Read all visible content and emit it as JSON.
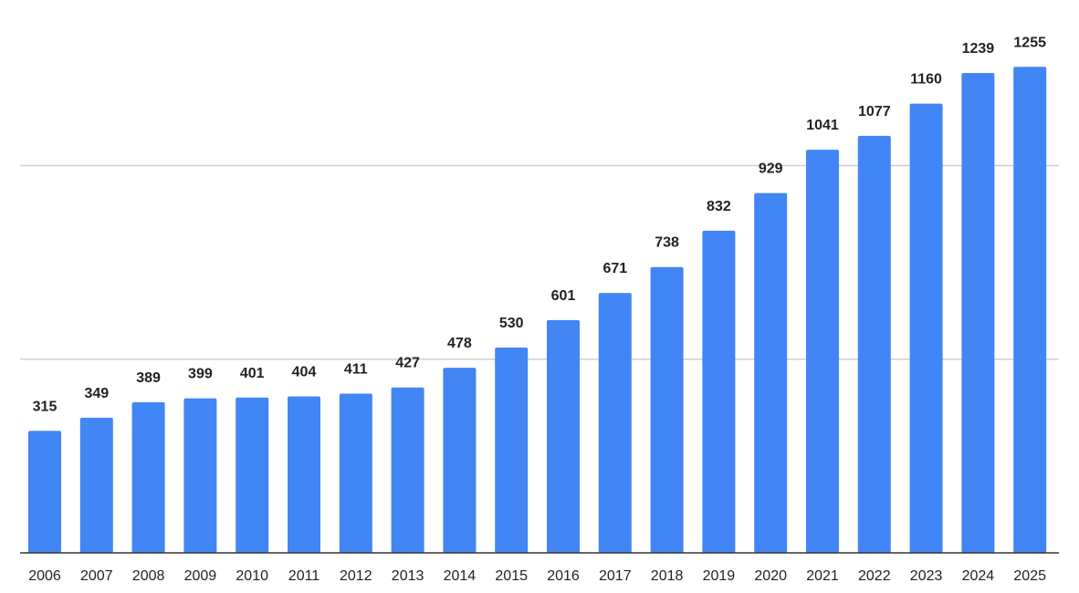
{
  "chart_data": {
    "type": "bar",
    "categories": [
      "2006",
      "2007",
      "2008",
      "2009",
      "2010",
      "2011",
      "2012",
      "2013",
      "2014",
      "2015",
      "2016",
      "2017",
      "2018",
      "2019",
      "2020",
      "2021",
      "2022",
      "2023",
      "2024",
      "2025"
    ],
    "values": [
      315,
      349,
      389,
      399,
      401,
      404,
      411,
      427,
      478,
      530,
      601,
      671,
      738,
      832,
      929,
      1041,
      1077,
      1160,
      1239,
      1255
    ],
    "title": "",
    "xlabel": "",
    "ylabel": "",
    "ylim": [
      0,
      1500
    ],
    "gridlines": [
      500,
      1000
    ],
    "grid": true,
    "legend": "none",
    "bar_color": "#4285f4",
    "axis_color": "#333333",
    "grid_color": "#d0d0d0"
  }
}
